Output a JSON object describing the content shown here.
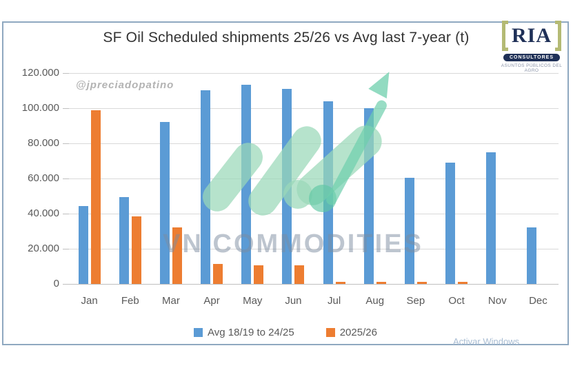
{
  "header": {
    "title": "SF Oil Scheduled shipments 25/26 vs Avg last 7-year (t)"
  },
  "logo": {
    "name": "RIA",
    "subtitle": "CONSULTORES",
    "tagline": "ASUNTOS PÚBLICOS DEL AGRO"
  },
  "watermarks": {
    "handle": "@jpreciadopatino",
    "brand": "VN COMMODITIES",
    "os_activation": "Activar Windows"
  },
  "colors": {
    "series_avg": "#5B9BD5",
    "series_current": "#ED7D31",
    "gridline": "#D9D9D9",
    "frame_border": "#8FA8C0",
    "watermark_mint": "#9AD8B8",
    "watermark_teal": "#5FC8A5"
  },
  "chart_data": {
    "type": "bar",
    "title": "SF Oil Scheduled shipments 25/26 vs Avg last 7-year (t)",
    "categories": [
      "Jan",
      "Feb",
      "Mar",
      "Apr",
      "May",
      "Jun",
      "Jul",
      "Aug",
      "Sep",
      "Oct",
      "Nov",
      "Dec"
    ],
    "series": [
      {
        "name": "Avg 18/19 to 24/25",
        "color": "#5B9BD5",
        "values": [
          44500,
          49500,
          92000,
          110000,
          113500,
          111000,
          104000,
          100000,
          60500,
          69000,
          75000,
          32000
        ]
      },
      {
        "name": "2025/26",
        "color": "#ED7D31",
        "values": [
          99000,
          38500,
          32000,
          11500,
          10500,
          10500,
          1000,
          1000,
          1000,
          1000,
          0,
          0
        ]
      }
    ],
    "ylabel": "",
    "xlabel": "",
    "ylim": [
      0,
      120000
    ],
    "ytick_step": 20000,
    "ytick_labels": [
      "0",
      "20.000",
      "40.000",
      "60.000",
      "80.000",
      "100.000",
      "120.000"
    ],
    "grid": "horizontal",
    "legend_position": "bottom"
  }
}
